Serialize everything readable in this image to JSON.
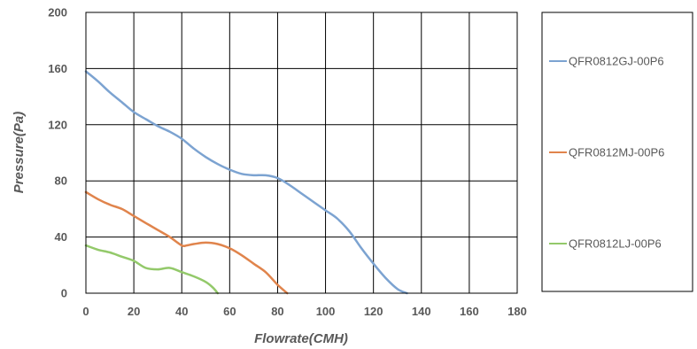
{
  "chart_data": {
    "type": "line",
    "xlabel": "Flowrate(CMH)",
    "ylabel": "Pressure(Pa)",
    "xlim": [
      0,
      180
    ],
    "ylim": [
      0,
      200
    ],
    "x_ticks": [
      0,
      20,
      40,
      60,
      80,
      100,
      120,
      140,
      160,
      180
    ],
    "y_ticks": [
      0,
      40,
      80,
      120,
      160,
      200
    ],
    "grid": true,
    "legend_position": "right",
    "series": [
      {
        "name": "QFR0812GJ-00P6",
        "color": "#7CA3D1",
        "points": [
          [
            0,
            158
          ],
          [
            5,
            151
          ],
          [
            10,
            143
          ],
          [
            15,
            136
          ],
          [
            20,
            129
          ],
          [
            25,
            124
          ],
          [
            30,
            119
          ],
          [
            35,
            115
          ],
          [
            40,
            110
          ],
          [
            45,
            103
          ],
          [
            50,
            97
          ],
          [
            55,
            92
          ],
          [
            60,
            88
          ],
          [
            65,
            85
          ],
          [
            70,
            84
          ],
          [
            75,
            84
          ],
          [
            80,
            82
          ],
          [
            85,
            77
          ],
          [
            90,
            71
          ],
          [
            95,
            65
          ],
          [
            100,
            59
          ],
          [
            105,
            53
          ],
          [
            110,
            44
          ],
          [
            115,
            32
          ],
          [
            120,
            21
          ],
          [
            125,
            11
          ],
          [
            130,
            3
          ],
          [
            134,
            0
          ]
        ]
      },
      {
        "name": "QFR0812MJ-00P6",
        "color": "#E0844C",
        "points": [
          [
            0,
            72
          ],
          [
            5,
            67
          ],
          [
            10,
            63
          ],
          [
            15,
            60
          ],
          [
            20,
            55
          ],
          [
            25,
            50
          ],
          [
            30,
            45
          ],
          [
            35,
            40
          ],
          [
            40,
            34
          ],
          [
            42,
            34
          ],
          [
            45,
            35
          ],
          [
            50,
            36
          ],
          [
            55,
            35
          ],
          [
            60,
            32
          ],
          [
            65,
            27
          ],
          [
            70,
            21
          ],
          [
            75,
            15
          ],
          [
            80,
            6
          ],
          [
            84,
            0
          ]
        ]
      },
      {
        "name": "QFR0812LJ-00P6",
        "color": "#93C96A",
        "points": [
          [
            0,
            34
          ],
          [
            5,
            31
          ],
          [
            10,
            29
          ],
          [
            15,
            26
          ],
          [
            20,
            23
          ],
          [
            25,
            18
          ],
          [
            30,
            17
          ],
          [
            35,
            18
          ],
          [
            40,
            15
          ],
          [
            45,
            12
          ],
          [
            50,
            8
          ],
          [
            53,
            4
          ],
          [
            55,
            0
          ]
        ]
      }
    ]
  }
}
